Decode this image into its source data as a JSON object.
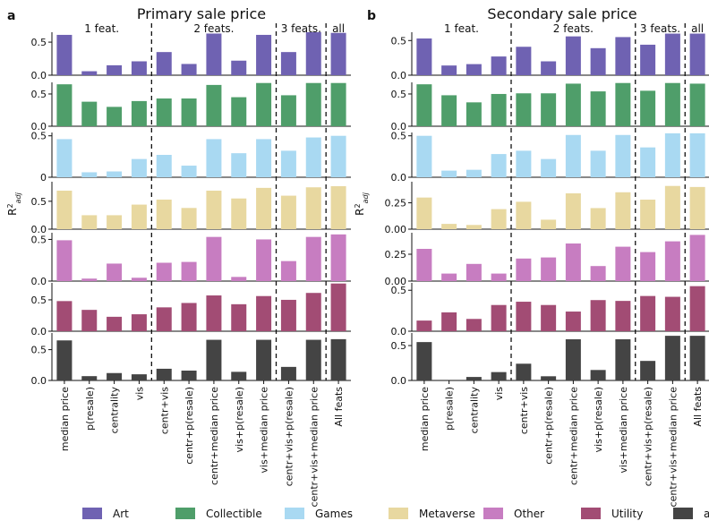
{
  "figure": {
    "legend": [
      {
        "name": "Art",
        "color": "#6f62b2"
      },
      {
        "name": "Collectible",
        "color": "#4f9e6a"
      },
      {
        "name": "Games",
        "color": "#a9d9f2"
      },
      {
        "name": "Metaverse",
        "color": "#e8d8a0"
      },
      {
        "name": "Other",
        "color": "#c77dc1"
      },
      {
        "name": "Utility",
        "color": "#a24c74"
      },
      {
        "name": "all",
        "color": "#444444"
      }
    ]
  },
  "chart_data": [
    {
      "type": "bar",
      "panel_label": "a",
      "title": "Primary sale price",
      "ylabel": "R²adj",
      "group_labels": [
        "1 feat.",
        "2 feats.",
        "3 feats.",
        "all"
      ],
      "groups": [
        4,
        5,
        2,
        1
      ],
      "categories": [
        "median price",
        "p(resale)",
        "centrality",
        "vis",
        "centr+vis",
        "centr+p(resale)",
        "centr+median price",
        "vis+p(resale)",
        "vis+median price",
        "centr+vis+p(resale)",
        "centr+vis+median price",
        "All feats"
      ],
      "series": [
        {
          "name": "Art",
          "ylim": [
            0,
            0.65
          ],
          "yticks": [
            "0.0",
            "0.5"
          ],
          "values": [
            0.61,
            0.06,
            0.15,
            0.21,
            0.35,
            0.17,
            0.63,
            0.22,
            0.61,
            0.35,
            0.65,
            0.64
          ]
        },
        {
          "name": "Collectible",
          "ylim": [
            0,
            0.68
          ],
          "yticks": [
            "0.0",
            "0.5"
          ],
          "values": [
            0.65,
            0.38,
            0.3,
            0.39,
            0.43,
            0.43,
            0.64,
            0.45,
            0.67,
            0.48,
            0.67,
            0.67
          ]
        },
        {
          "name": "Games",
          "ylim": [
            0,
            0.54
          ],
          "yticks": [
            "0",
            "0.5"
          ],
          "values": [
            0.46,
            0.06,
            0.07,
            0.22,
            0.27,
            0.14,
            0.46,
            0.29,
            0.46,
            0.32,
            0.48,
            0.5
          ]
        },
        {
          "name": "Metaverse",
          "ylim": [
            0,
            0.85
          ],
          "yticks": [
            "0.0",
            "0.5"
          ],
          "values": [
            0.69,
            0.25,
            0.25,
            0.44,
            0.53,
            0.38,
            0.69,
            0.55,
            0.74,
            0.6,
            0.75,
            0.77
          ]
        },
        {
          "name": "Other",
          "ylim": [
            0,
            0.58
          ],
          "yticks": [
            "0.0",
            "0.5"
          ],
          "values": [
            0.49,
            0.03,
            0.21,
            0.04,
            0.22,
            0.23,
            0.53,
            0.05,
            0.5,
            0.24,
            0.53,
            0.56
          ]
        },
        {
          "name": "Utility",
          "ylim": [
            0,
            0.77
          ],
          "yticks": [
            "0.0",
            "0.5"
          ],
          "values": [
            0.48,
            0.34,
            0.23,
            0.27,
            0.38,
            0.45,
            0.57,
            0.43,
            0.56,
            0.5,
            0.61,
            0.76
          ]
        },
        {
          "name": "all",
          "ylim": [
            0,
            0.77
          ],
          "yticks": [
            "0.0",
            "0.5"
          ],
          "values": [
            0.65,
            0.07,
            0.12,
            0.1,
            0.19,
            0.16,
            0.66,
            0.14,
            0.66,
            0.22,
            0.66,
            0.67
          ]
        }
      ]
    },
    {
      "type": "bar",
      "panel_label": "b",
      "title": "Secondary sale price",
      "ylabel": "R²adj",
      "group_labels": [
        "1 feat.",
        "2 feats.",
        "3 feats.",
        "all"
      ],
      "groups": [
        4,
        5,
        2,
        1
      ],
      "categories": [
        "median price",
        "p(resale)",
        "centrality",
        "vis",
        "centr+vis",
        "centr+p(resale)",
        "centr+median price",
        "vis+p(resale)",
        "vis+median price",
        "centr+vis+p(resale)",
        "centr+vis+median price",
        "All feats"
      ],
      "series": [
        {
          "name": "Art",
          "ylim": [
            0,
            0.62
          ],
          "yticks": [
            "0.0",
            "0.5"
          ],
          "values": [
            0.53,
            0.14,
            0.16,
            0.27,
            0.41,
            0.2,
            0.56,
            0.39,
            0.55,
            0.44,
            0.6,
            0.6
          ]
        },
        {
          "name": "Collectible",
          "ylim": [
            0,
            0.68
          ],
          "yticks": [
            "0.0",
            "0.5"
          ],
          "values": [
            0.65,
            0.48,
            0.37,
            0.5,
            0.51,
            0.51,
            0.66,
            0.54,
            0.67,
            0.55,
            0.67,
            0.66
          ]
        },
        {
          "name": "Games",
          "ylim": [
            0,
            0.54
          ],
          "yticks": [
            "0.0",
            "0.5"
          ],
          "values": [
            0.5,
            0.08,
            0.09,
            0.28,
            0.32,
            0.22,
            0.51,
            0.32,
            0.51,
            0.36,
            0.53,
            0.53
          ]
        },
        {
          "name": "Metaverse",
          "ylim": [
            0,
            0.45
          ],
          "yticks": [
            "0.00",
            "0.25"
          ],
          "values": [
            0.3,
            0.05,
            0.04,
            0.19,
            0.26,
            0.09,
            0.34,
            0.2,
            0.35,
            0.28,
            0.41,
            0.4
          ]
        },
        {
          "name": "Other",
          "ylim": [
            0,
            0.45
          ],
          "yticks": [
            "0.00",
            "0.25"
          ],
          "values": [
            0.3,
            0.07,
            0.16,
            0.07,
            0.21,
            0.22,
            0.35,
            0.14,
            0.32,
            0.27,
            0.37,
            0.43
          ]
        },
        {
          "name": "Utility",
          "ylim": [
            0,
            0.59
          ],
          "yticks": [
            "0.0",
            "0.5"
          ],
          "values": [
            0.13,
            0.23,
            0.15,
            0.32,
            0.36,
            0.32,
            0.24,
            0.38,
            0.37,
            0.43,
            0.42,
            0.55
          ]
        },
        {
          "name": "all",
          "ylim": [
            0,
            0.68
          ],
          "yticks": [
            "0.0",
            "0.5"
          ],
          "values": [
            0.55,
            0.0,
            0.05,
            0.12,
            0.24,
            0.06,
            0.59,
            0.15,
            0.59,
            0.28,
            0.64,
            0.64
          ]
        }
      ]
    }
  ]
}
